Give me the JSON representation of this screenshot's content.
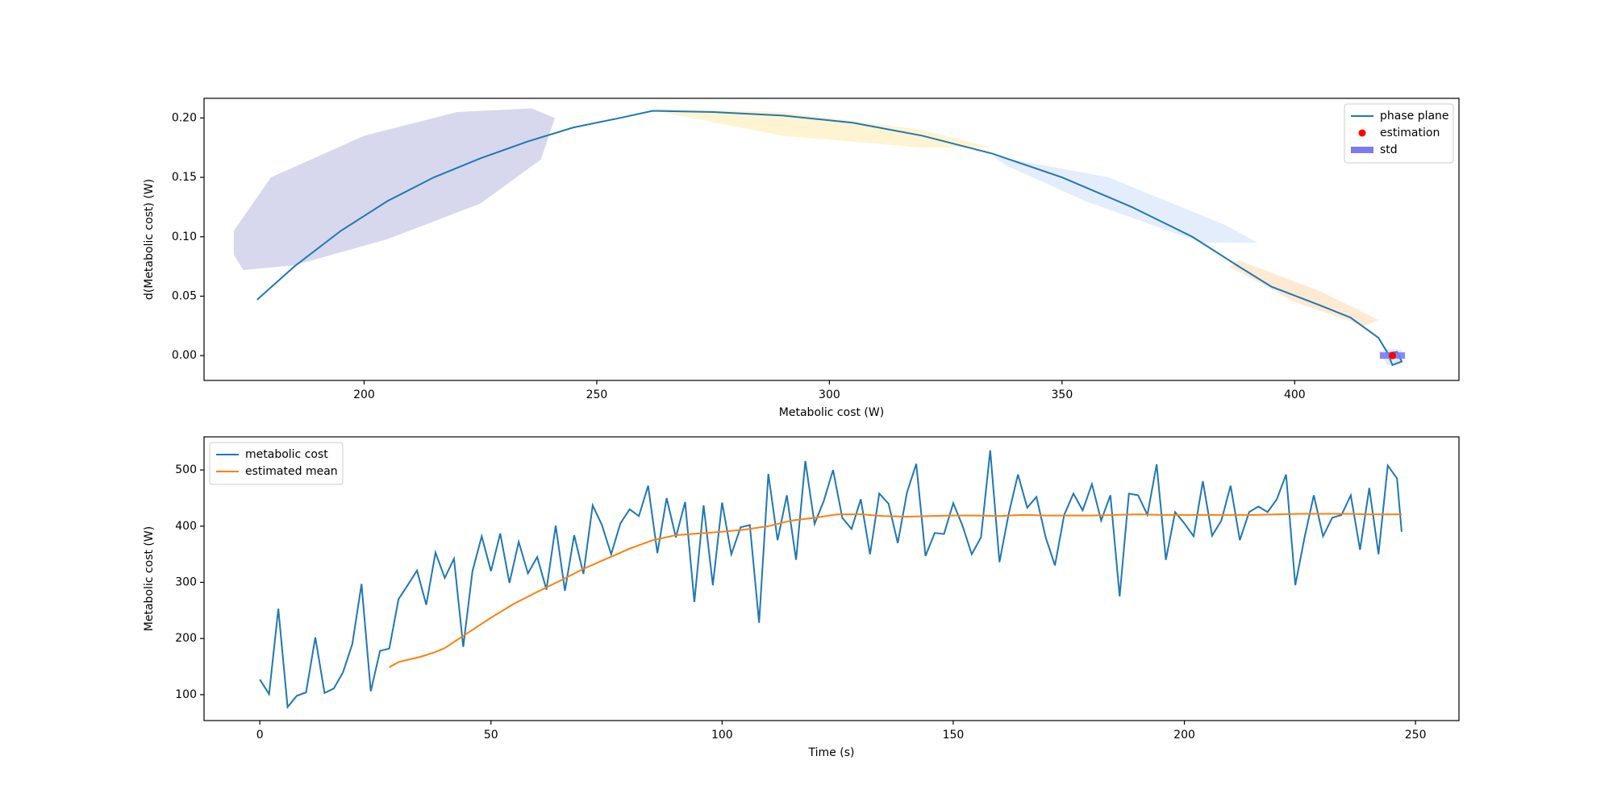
{
  "chart_data": [
    {
      "type": "line",
      "xlabel": "Metabolic cost (W)",
      "ylabel": "d(Metabolic cost) (W)",
      "xlim": [
        165.6,
        435.3
      ],
      "ylim": [
        -0.0209,
        0.2165
      ],
      "xticks": [
        200,
        250,
        300,
        350,
        400
      ],
      "yticks": [
        {
          "value": 0,
          "label": "0.00"
        },
        {
          "value": 0.05,
          "label": "0.05"
        },
        {
          "value": 0.1,
          "label": "0.10"
        },
        {
          "value": 0.15,
          "label": "0.15"
        },
        {
          "value": 0.2,
          "label": "0.20"
        }
      ],
      "legend": "upper right",
      "ellipses": [
        {
          "color": "#c9c9e8",
          "x": [
            172,
            174,
            185,
            205,
            225,
            238,
            241,
            236,
            220,
            200,
            180,
            172
          ],
          "y": [
            0.085,
            0.072,
            0.076,
            0.098,
            0.128,
            0.165,
            0.2,
            0.208,
            0.205,
            0.185,
            0.15,
            0.105
          ]
        },
        {
          "color": "#fdf0c2",
          "x": [
            262,
            290,
            320,
            335,
            320,
            290,
            265
          ],
          "y": [
            0.208,
            0.205,
            0.19,
            0.175,
            0.175,
            0.185,
            0.204
          ]
        },
        {
          "color": "#dbe7fb",
          "x": [
            335,
            360,
            385,
            392,
            380,
            355,
            338
          ],
          "y": [
            0.168,
            0.15,
            0.11,
            0.095,
            0.095,
            0.13,
            0.16
          ]
        },
        {
          "color": "#fde3c4",
          "x": [
            388,
            405,
            418,
            415,
            400,
            386
          ],
          "y": [
            0.08,
            0.055,
            0.03,
            0.025,
            0.045,
            0.075
          ]
        },
        {
          "color": "#d6e6f7",
          "x": [
            418,
            420,
            423,
            423,
            420
          ],
          "y": [
            0.003,
            -0.008,
            -0.006,
            0.005,
            0.006
          ]
        }
      ],
      "series": [
        {
          "name": "phase plane",
          "color": "#1f77b4",
          "x": [
            177,
            185,
            195,
            205,
            215,
            225,
            235,
            245,
            255,
            262,
            275,
            290,
            305,
            320,
            335,
            350,
            365,
            378,
            388,
            395,
            405,
            412,
            418,
            420,
            421,
            423,
            422,
            420
          ],
          "values": [
            0.047,
            0.075,
            0.105,
            0.13,
            0.15,
            0.166,
            0.18,
            0.192,
            0.2,
            0.206,
            0.205,
            0.202,
            0.196,
            0.185,
            0.17,
            0.15,
            0.125,
            0.1,
            0.075,
            0.058,
            0.043,
            0.032,
            0.015,
            0.002,
            -0.008,
            -0.005,
            0.003,
            0.002
          ]
        }
      ],
      "estimation": {
        "name": "estimation",
        "color": "#ff0000",
        "x": 421,
        "y": 0
      },
      "std": {
        "name": "std",
        "color": "#7b7bf5",
        "value": 2.7
      }
    },
    {
      "type": "line",
      "xlabel": "Time (s)",
      "ylabel": "Metabolic cost (W)",
      "xlim": [
        -12.07,
        259.4
      ],
      "ylim": [
        53.9,
        559
      ],
      "xticks": [
        0,
        50,
        100,
        150,
        200,
        250
      ],
      "yticks": [
        100,
        200,
        300,
        400,
        500
      ],
      "legend": "upper left",
      "series": [
        {
          "name": "metabolic cost",
          "color": "#1f77b4",
          "x": [
            0,
            2,
            4,
            6,
            8,
            10,
            12,
            14,
            16,
            18,
            20,
            22,
            24,
            26,
            28,
            30,
            32,
            34,
            36,
            38,
            40,
            42,
            44,
            46,
            48,
            50,
            52,
            54,
            56,
            58,
            60,
            62,
            64,
            66,
            68,
            70,
            72,
            74,
            76,
            78,
            80,
            82,
            84,
            86,
            88,
            90,
            92,
            94,
            96,
            98,
            100,
            102,
            104,
            106,
            108,
            110,
            112,
            114,
            116,
            118,
            120,
            122,
            124,
            126,
            128,
            130,
            132,
            134,
            136,
            138,
            140,
            142,
            144,
            146,
            148,
            150,
            152,
            154,
            156,
            158,
            160,
            162,
            164,
            166,
            168,
            170,
            172,
            174,
            176,
            178,
            180,
            182,
            184,
            186,
            188,
            190,
            192,
            194,
            196,
            198,
            200,
            202,
            204,
            206,
            208,
            210,
            212,
            214,
            216,
            218,
            220,
            222,
            224,
            226,
            228,
            230,
            232,
            234,
            236,
            238,
            240,
            242,
            244,
            246,
            247
          ],
          "values": [
            127,
            101,
            253,
            78,
            98,
            104,
            202,
            103,
            111,
            140,
            190,
            297,
            106,
            178,
            182,
            270,
            295,
            321,
            260,
            353,
            308,
            342,
            185,
            320,
            382,
            320,
            387,
            299,
            372,
            316,
            345,
            287,
            401,
            285,
            384,
            315,
            437,
            402,
            350,
            405,
            430,
            418,
            472,
            352,
            450,
            380,
            443,
            265,
            437,
            295,
            442,
            350,
            398,
            402,
            228,
            493,
            375,
            455,
            340,
            516,
            404,
            445,
            500,
            415,
            395,
            448,
            350,
            458,
            440,
            370,
            460,
            511,
            347,
            388,
            386,
            441,
            401,
            350,
            380,
            535,
            336,
            422,
            492,
            433,
            452,
            380,
            330,
            420,
            458,
            428,
            475,
            410,
            455,
            275,
            458,
            455,
            420,
            510,
            340,
            425,
            405,
            382,
            480,
            383,
            410,
            472,
            375,
            425,
            435,
            425,
            448,
            492,
            295,
            380,
            455,
            382,
            415,
            420,
            455,
            358,
            468,
            350,
            508,
            485,
            390
          ]
        },
        {
          "name": "estimated mean",
          "color": "#ff7f0e",
          "x": [
            28,
            30,
            35,
            38,
            40,
            45,
            50,
            55,
            60,
            65,
            70,
            75,
            80,
            85,
            90,
            95,
            100,
            105,
            110,
            115,
            120,
            125,
            130,
            135,
            140,
            145,
            150,
            155,
            160,
            165,
            170,
            175,
            180,
            185,
            190,
            195,
            200,
            205,
            210,
            215,
            220,
            225,
            230,
            235,
            240,
            245,
            247
          ],
          "values": [
            149,
            158,
            168,
            176,
            183,
            210,
            237,
            262,
            283,
            303,
            324,
            342,
            360,
            375,
            384,
            387,
            390,
            394,
            400,
            410,
            415,
            421,
            421,
            418,
            417,
            418,
            419,
            419,
            418,
            420,
            419,
            419,
            419,
            420,
            421,
            420,
            420,
            420,
            420,
            420,
            421,
            422,
            422,
            422,
            421,
            421,
            421
          ]
        }
      ]
    }
  ]
}
